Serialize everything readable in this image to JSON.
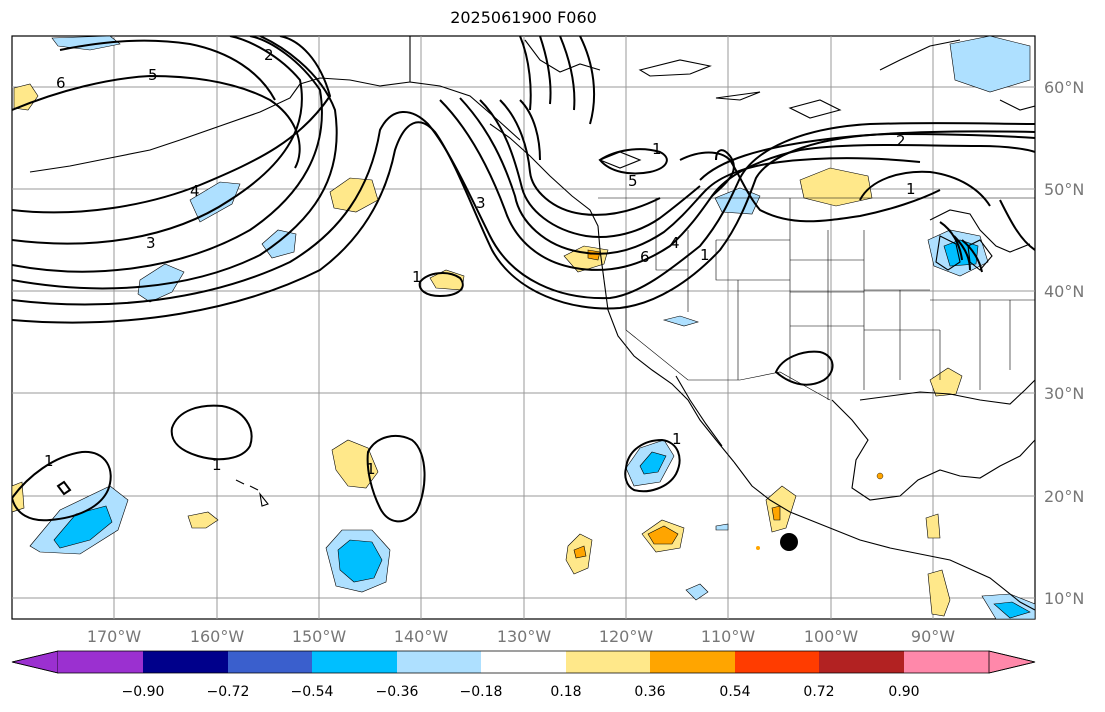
{
  "title": "2025061900 F060",
  "map": {
    "lat_labels": [
      "60°N",
      "50°N",
      "40°N",
      "30°N",
      "20°N",
      "10°N"
    ],
    "lon_labels": [
      "170°W",
      "160°W",
      "150°W",
      "140°W",
      "130°W",
      "120°W",
      "110°W",
      "100°W",
      "90°W"
    ],
    "contour_labels": [
      "6",
      "5",
      "2",
      "4",
      "3",
      "1",
      "6",
      "4",
      "1",
      "5",
      "2",
      "1",
      "3",
      "1",
      "1",
      "1",
      "1",
      "1"
    ],
    "marker": {
      "name": "storm-center-marker",
      "lat": 15.5,
      "lon": -104.0
    }
  },
  "colorbar": {
    "ticks": [
      "−0.90",
      "−0.72",
      "−0.54",
      "−0.36",
      "−0.18",
      "0.18",
      "0.36",
      "0.54",
      "0.72",
      "0.90"
    ],
    "colors": [
      "#9b30d0",
      "#00008b",
      "#3a5fcd",
      "#00bfff",
      "#aee0ff",
      "#ffffff",
      "#ffe88a",
      "#ffa500",
      "#ff3c00",
      "#b22222",
      "#ff88aa"
    ]
  }
}
